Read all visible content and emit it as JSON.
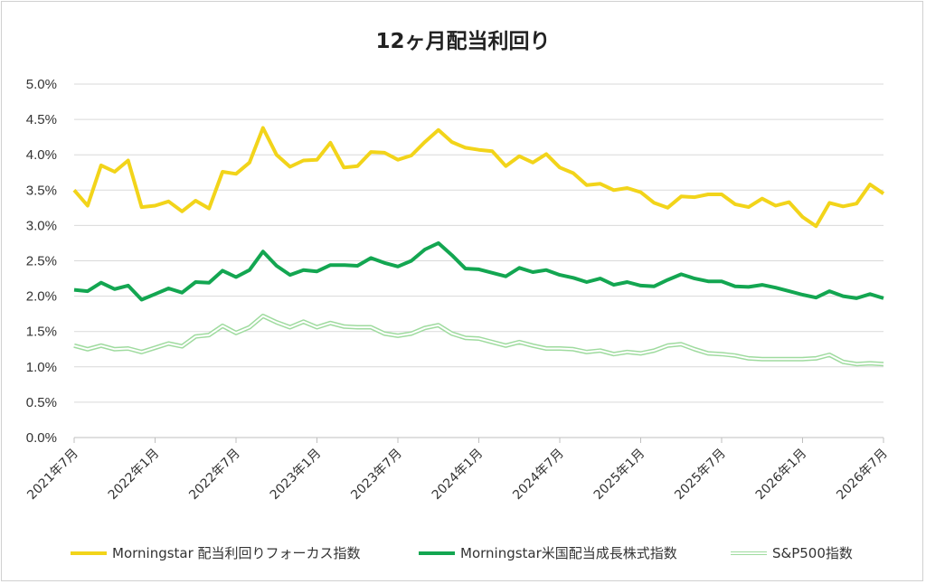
{
  "chart_data": {
    "type": "line",
    "title": "12ヶ月配当利回り",
    "xlabel": "",
    "ylabel": "",
    "ylim": [
      0,
      5.0
    ],
    "ytick_labels": [
      "0.0%",
      "0.5%",
      "1.0%",
      "1.5%",
      "2.0%",
      "2.5%",
      "3.0%",
      "3.5%",
      "4.0%",
      "4.5%",
      "5.0%"
    ],
    "xtick_labels": [
      "2021年7月",
      "2022年1月",
      "2022年7月",
      "2023年1月",
      "2023年7月",
      "2024年1月",
      "2024年7月",
      "2025年1月",
      "2025年7月",
      "2026年1月",
      "2026年7月"
    ],
    "grid": true,
    "legend_position": "bottom",
    "n_points": 61,
    "series": [
      {
        "name": "Morningstar 配当利回りフォーカス指数",
        "color": "#f2d41a",
        "style": "solid",
        "values": [
          3.5,
          3.28,
          3.85,
          3.76,
          3.92,
          3.26,
          3.28,
          3.34,
          3.2,
          3.35,
          3.24,
          3.76,
          3.73,
          3.89,
          4.38,
          4.0,
          3.83,
          3.92,
          3.93,
          4.17,
          3.82,
          3.84,
          4.04,
          4.03,
          3.93,
          3.99,
          4.18,
          4.35,
          4.18,
          4.1,
          4.07,
          4.05,
          3.84,
          3.98,
          3.89,
          4.01,
          3.82,
          3.74,
          3.57,
          3.59,
          3.5,
          3.53,
          3.47,
          3.32,
          3.25,
          3.41,
          3.4,
          3.44,
          3.44,
          3.3,
          3.26,
          3.38,
          3.28,
          3.33,
          3.12,
          2.99,
          3.32,
          3.27,
          3.31,
          3.58,
          3.45
        ]
      },
      {
        "name": "Morningstar米国配当成長株式指数",
        "color": "#13a651",
        "style": "solid",
        "values": [
          2.09,
          2.07,
          2.19,
          2.1,
          2.15,
          1.95,
          2.03,
          2.11,
          2.05,
          2.2,
          2.19,
          2.36,
          2.27,
          2.37,
          2.63,
          2.43,
          2.3,
          2.37,
          2.35,
          2.44,
          2.44,
          2.43,
          2.54,
          2.47,
          2.42,
          2.5,
          2.66,
          2.75,
          2.58,
          2.39,
          2.38,
          2.33,
          2.28,
          2.4,
          2.34,
          2.37,
          2.3,
          2.26,
          2.2,
          2.25,
          2.16,
          2.2,
          2.15,
          2.14,
          2.23,
          2.31,
          2.25,
          2.21,
          2.21,
          2.14,
          2.13,
          2.16,
          2.12,
          2.07,
          2.02,
          1.98,
          2.07,
          2.0,
          1.97,
          2.03,
          1.97
        ]
      },
      {
        "name": "S&P500指数",
        "color": "#9fdb9f",
        "style": "double",
        "values": [
          1.3,
          1.25,
          1.3,
          1.25,
          1.26,
          1.21,
          1.27,
          1.33,
          1.29,
          1.43,
          1.45,
          1.58,
          1.48,
          1.56,
          1.72,
          1.63,
          1.56,
          1.64,
          1.56,
          1.62,
          1.57,
          1.56,
          1.56,
          1.47,
          1.44,
          1.47,
          1.55,
          1.59,
          1.47,
          1.41,
          1.4,
          1.35,
          1.3,
          1.35,
          1.3,
          1.26,
          1.26,
          1.25,
          1.21,
          1.23,
          1.18,
          1.21,
          1.19,
          1.23,
          1.3,
          1.32,
          1.25,
          1.19,
          1.18,
          1.16,
          1.12,
          1.11,
          1.11,
          1.11,
          1.11,
          1.12,
          1.17,
          1.07,
          1.04,
          1.05,
          1.04
        ]
      }
    ]
  }
}
